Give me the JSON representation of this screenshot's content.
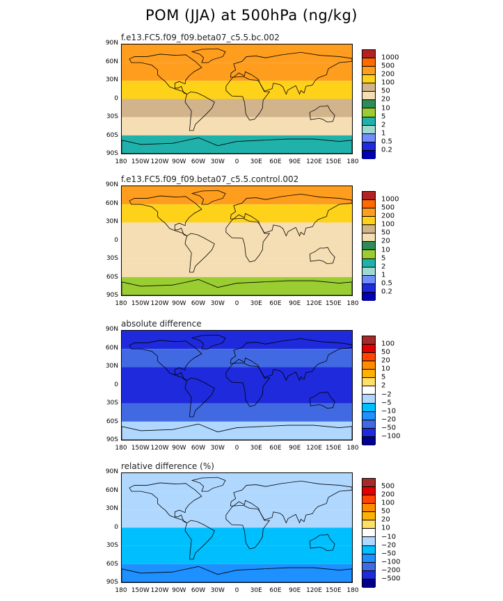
{
  "title": "POM (JJA) at 500hPa (ng/kg)",
  "lat_ticks": [
    "90N",
    "60N",
    "30N",
    "0",
    "30S",
    "60S",
    "90S"
  ],
  "lon_ticks": [
    "180",
    "150W",
    "120W",
    "90W",
    "60W",
    "30W",
    "0",
    "30E",
    "60E",
    "90E",
    "120E",
    "150E",
    "180"
  ],
  "panels": [
    {
      "title": "f.e13.FC5.f09_f09.beta07_c5.5.bc.002",
      "colorbar": {
        "labels": [
          "1000",
          "500",
          "200",
          "100",
          "50",
          "20",
          "10",
          "5",
          "2",
          "1",
          "0.5",
          "0.2"
        ],
        "colors": [
          "#b22222",
          "#ff6a00",
          "#ff9d1e",
          "#ffd21a",
          "#d2b48c",
          "#f5deb3",
          "#2e8b57",
          "#9acd32",
          "#20b2aa",
          "#9fd8cf",
          "#6f8fff",
          "#1e2adb",
          "#0000b0"
        ]
      },
      "fill_zones": [
        {
          "band": "60N-90N",
          "color": "#ff9d1e"
        },
        {
          "band": "30N-60N",
          "color": "#ff9d1e"
        },
        {
          "band": "0-30N",
          "color": "#ffd21a"
        },
        {
          "band": "0-30S",
          "color": "#d2b48c"
        },
        {
          "band": "30S-60S",
          "color": "#f5deb3"
        },
        {
          "band": "60S-90S",
          "color": "#20b2aa"
        }
      ]
    },
    {
      "title": "f.e13.FC5.f09_f09.beta07_c5.5.control.002",
      "colorbar": {
        "labels": [
          "1000",
          "500",
          "200",
          "100",
          "50",
          "20",
          "10",
          "5",
          "2",
          "1",
          "0.5",
          "0.2"
        ],
        "colors": [
          "#b22222",
          "#ff6a00",
          "#ff9d1e",
          "#ffd21a",
          "#d2b48c",
          "#f5deb3",
          "#2e8b57",
          "#9acd32",
          "#20b2aa",
          "#9fd8cf",
          "#6f8fff",
          "#1e2adb",
          "#0000b0"
        ]
      },
      "fill_zones": [
        {
          "band": "60N-90N",
          "color": "#ff9d1e"
        },
        {
          "band": "30N-60N",
          "color": "#ffd21a"
        },
        {
          "band": "0-30N",
          "color": "#f5deb3"
        },
        {
          "band": "0-30S",
          "color": "#f5deb3"
        },
        {
          "band": "30S-60S",
          "color": "#f5deb3"
        },
        {
          "band": "60S-90S",
          "color": "#9acd32"
        }
      ]
    },
    {
      "title": "absolute difference",
      "colorbar": {
        "labels": [
          "100",
          "50",
          "20",
          "10",
          "5",
          "2",
          "−2",
          "−5",
          "−10",
          "−20",
          "−50",
          "−100"
        ],
        "colors": [
          "#a52a2a",
          "#e00000",
          "#ff4500",
          "#ff8c00",
          "#ffb000",
          "#ffe066",
          "#ffffff",
          "#b0d8ff",
          "#00bfff",
          "#1e90ff",
          "#4169e1",
          "#1e2adb",
          "#00008b"
        ]
      },
      "fill_zones": [
        {
          "band": "60N-90N",
          "color": "#1e2adb"
        },
        {
          "band": "30N-60N",
          "color": "#4169e1"
        },
        {
          "band": "0-30N",
          "color": "#1e2adb"
        },
        {
          "band": "0-30S",
          "color": "#1e2adb"
        },
        {
          "band": "30S-60S",
          "color": "#4169e1"
        },
        {
          "band": "60S-90S",
          "color": "#b0d8ff"
        }
      ]
    },
    {
      "title": "relative difference (%)",
      "colorbar": {
        "labels": [
          "500",
          "200",
          "100",
          "50",
          "20",
          "10",
          "−10",
          "−20",
          "−50",
          "−100",
          "−200",
          "−500"
        ],
        "colors": [
          "#a52a2a",
          "#e00000",
          "#ff4500",
          "#ff8c00",
          "#ffb000",
          "#ffe066",
          "#ffffff",
          "#b0d8ff",
          "#00bfff",
          "#1e90ff",
          "#4169e1",
          "#1e2adb",
          "#00008b"
        ]
      },
      "fill_zones": [
        {
          "band": "60N-90N",
          "color": "#b0d8ff"
        },
        {
          "band": "30N-60N",
          "color": "#b0d8ff"
        },
        {
          "band": "0-30N",
          "color": "#b0d8ff"
        },
        {
          "band": "0-30S",
          "color": "#00bfff"
        },
        {
          "band": "30S-60S",
          "color": "#00bfff"
        },
        {
          "band": "60S-90S",
          "color": "#1e90ff"
        }
      ]
    }
  ]
}
